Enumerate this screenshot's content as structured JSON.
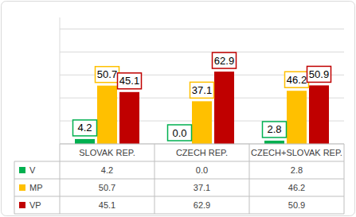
{
  "chart_data": {
    "type": "bar",
    "categories": [
      "SLOVAK REP.",
      "CZECH REP.",
      "CZECH+SLOVAK REP."
    ],
    "series": [
      {
        "name": "V",
        "color": "#00b050",
        "values": [
          4.2,
          0.0,
          2.8
        ],
        "value_labels": [
          "4.2",
          "0.0",
          "2.8"
        ]
      },
      {
        "name": "MP",
        "color": "#ffc000",
        "values": [
          50.7,
          37.1,
          46.2
        ],
        "value_labels": [
          "50.7",
          "37.1",
          "46.2"
        ]
      },
      {
        "name": "VP",
        "color": "#c00000",
        "values": [
          45.1,
          62.9,
          50.9
        ],
        "value_labels": [
          "45.1",
          "62.9",
          "50.9"
        ]
      }
    ],
    "ylim": [
      0,
      110
    ],
    "yticks": [
      0,
      20,
      40,
      60,
      80,
      100
    ],
    "grid": true,
    "data_labels": true,
    "tick_labels": "x"
  }
}
